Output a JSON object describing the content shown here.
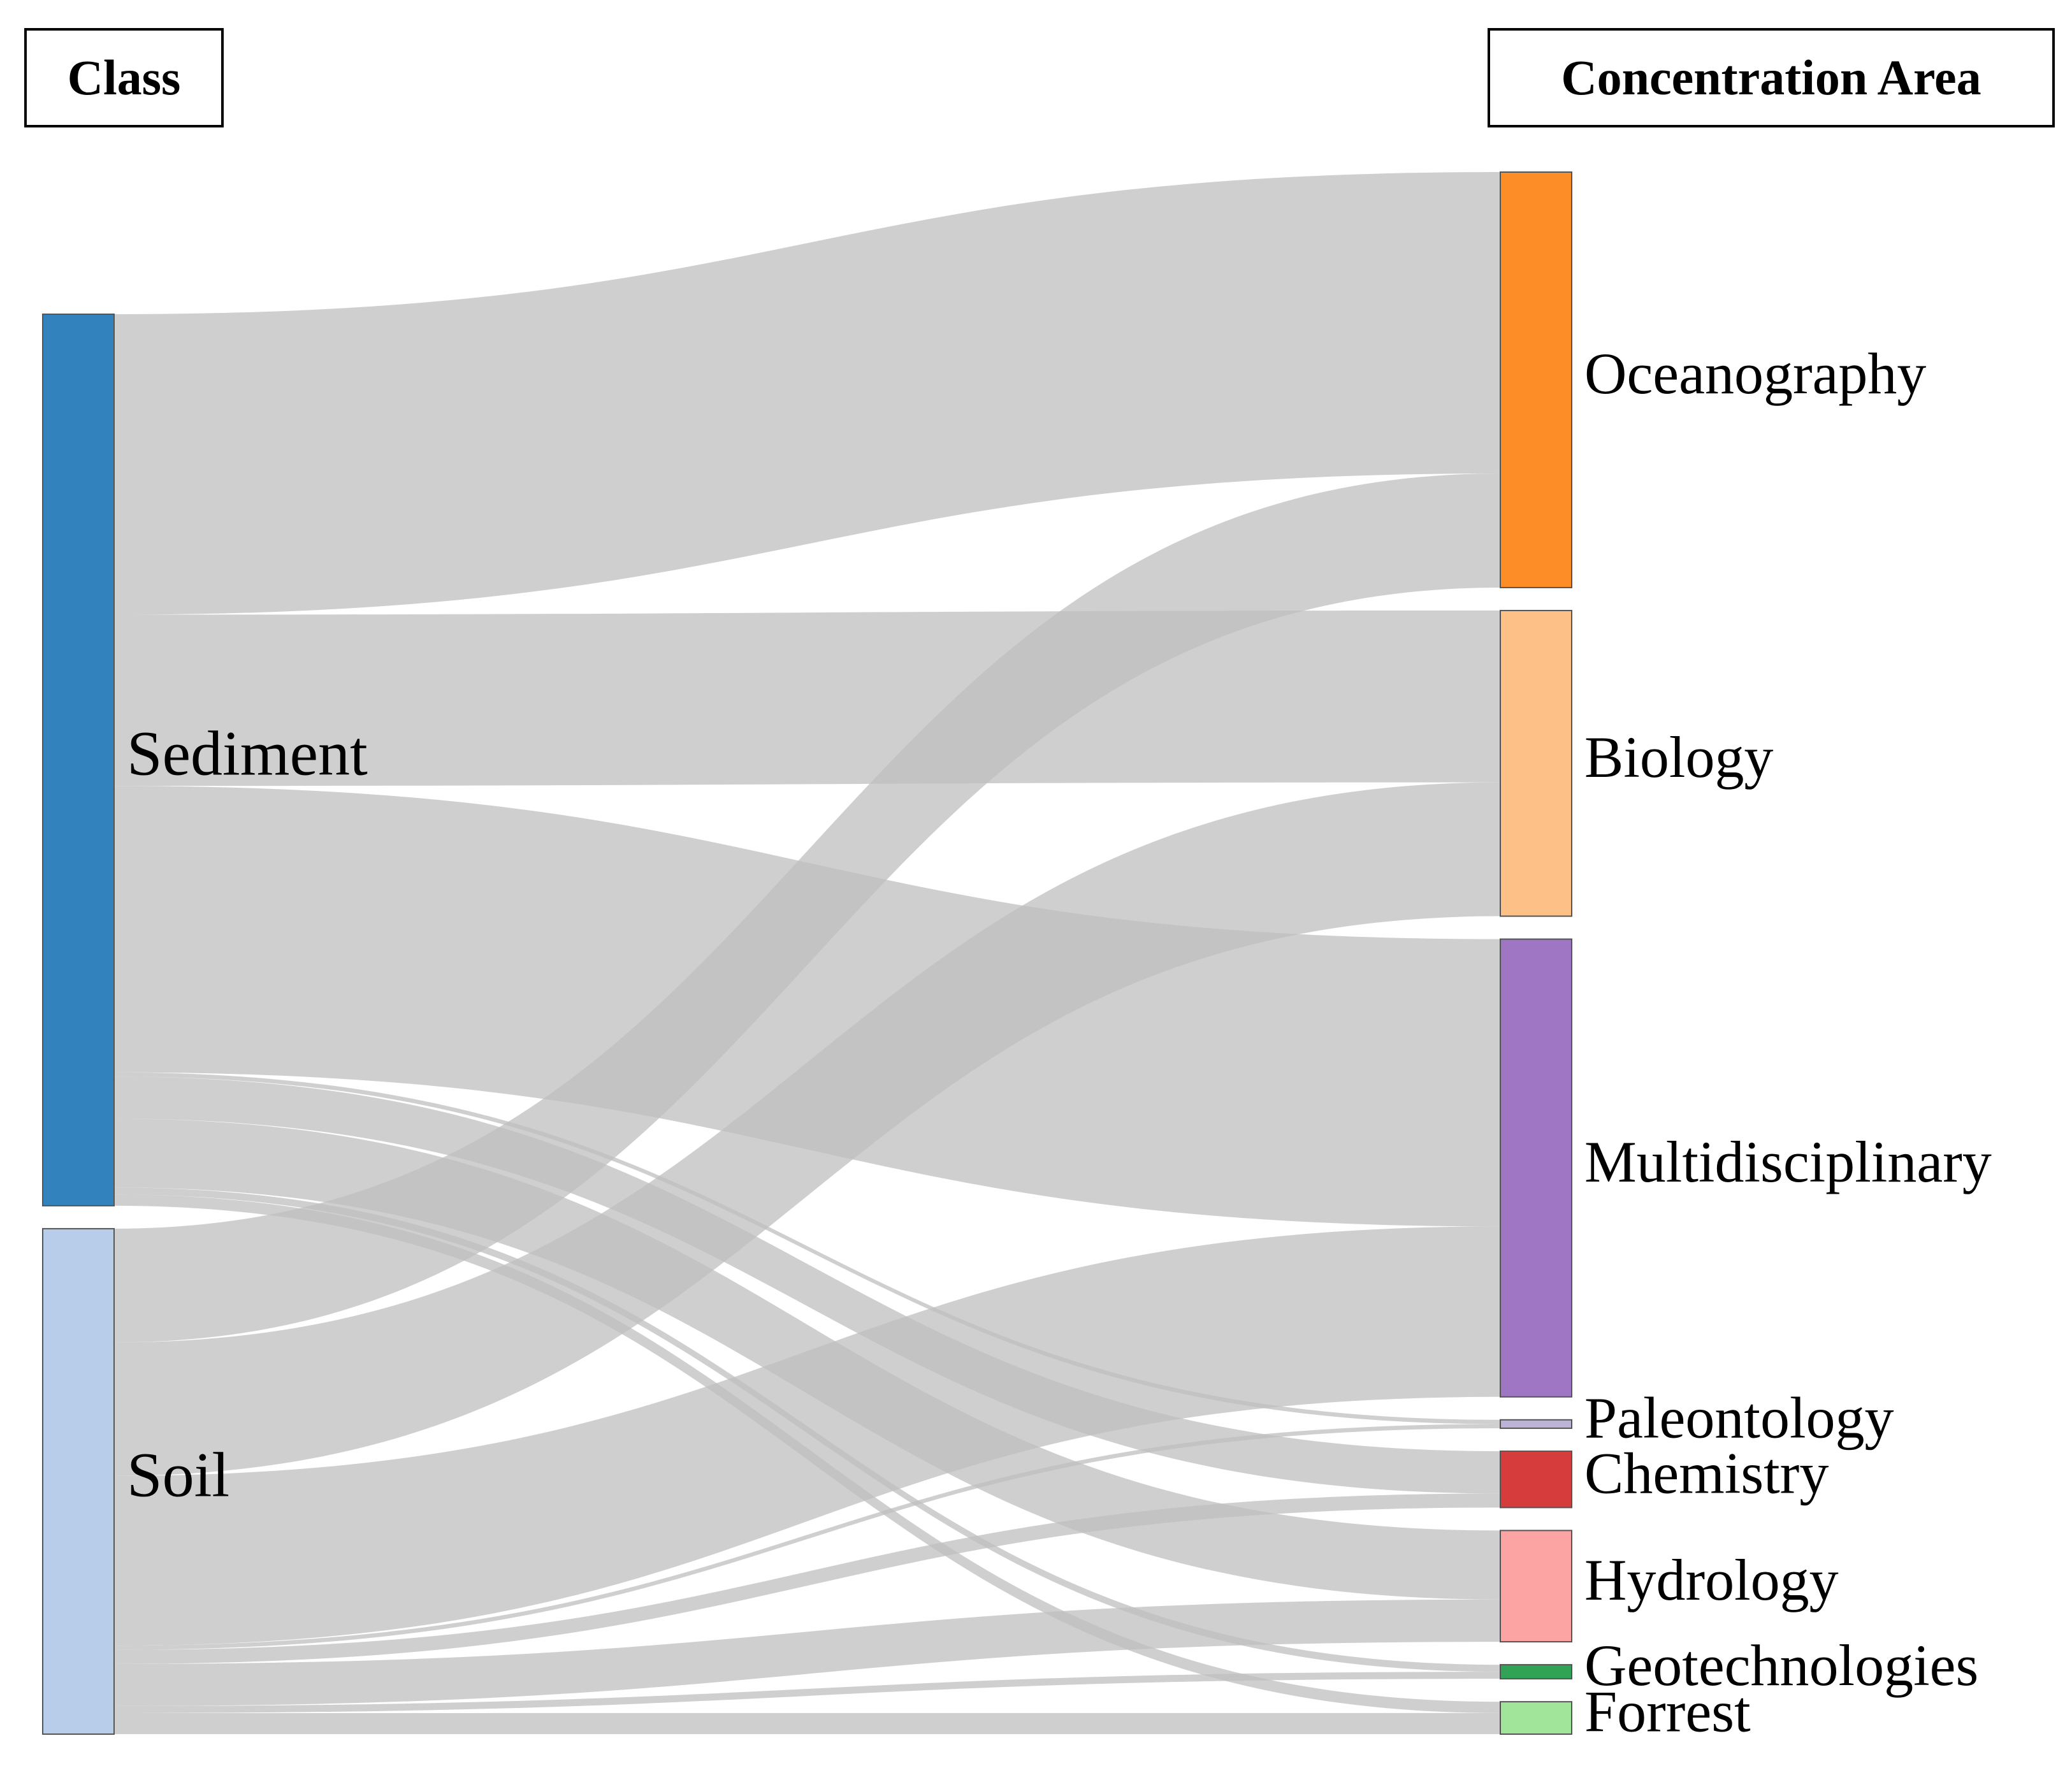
{
  "headers": {
    "left": "Class",
    "right": "Concentration Area"
  },
  "colors": {
    "link": "#bfbfbf",
    "Sediment": "#3182bd",
    "Soil": "#b7cde9",
    "Oceanography": "#fd8d27",
    "Biology": "#fdc086",
    "Multidisciplinary": "#9e76c3",
    "Paleontology": "#bcb3d6",
    "Chemistry": "#d73c3c",
    "Hydrology": "#fca3a3",
    "Geotechnologies": "#31a354",
    "Forrest": "#a1e59a"
  },
  "chart_data": {
    "type": "sankey",
    "value_unit": "relative share (approx., % of total flow)",
    "sources": [
      "Sediment",
      "Soil"
    ],
    "targets": [
      "Oceanography",
      "Biology",
      "Multidisciplinary",
      "Paleontology",
      "Chemistry",
      "Hydrology",
      "Geotechnologies",
      "Forrest"
    ],
    "links": [
      {
        "source": "Sediment",
        "target": "Oceanography",
        "value": 21.4
      },
      {
        "source": "Sediment",
        "target": "Biology",
        "value": 12.2
      },
      {
        "source": "Sediment",
        "target": "Multidisciplinary",
        "value": 20.4
      },
      {
        "source": "Sediment",
        "target": "Paleontology",
        "value": 0.3
      },
      {
        "source": "Sediment",
        "target": "Chemistry",
        "value": 3.0
      },
      {
        "source": "Sediment",
        "target": "Hydrology",
        "value": 4.9
      },
      {
        "source": "Sediment",
        "target": "Geotechnologies",
        "value": 0.5
      },
      {
        "source": "Sediment",
        "target": "Forrest",
        "value": 0.8
      },
      {
        "source": "Soil",
        "target": "Oceanography",
        "value": 8.1
      },
      {
        "source": "Soil",
        "target": "Biology",
        "value": 9.5
      },
      {
        "source": "Soil",
        "target": "Multidisciplinary",
        "value": 12.1
      },
      {
        "source": "Soil",
        "target": "Paleontology",
        "value": 0.3
      },
      {
        "source": "Soil",
        "target": "Chemistry",
        "value": 1.0
      },
      {
        "source": "Soil",
        "target": "Hydrology",
        "value": 3.0
      },
      {
        "source": "Soil",
        "target": "Geotechnologies",
        "value": 0.5
      },
      {
        "source": "Soil",
        "target": "Forrest",
        "value": 1.5
      }
    ]
  }
}
